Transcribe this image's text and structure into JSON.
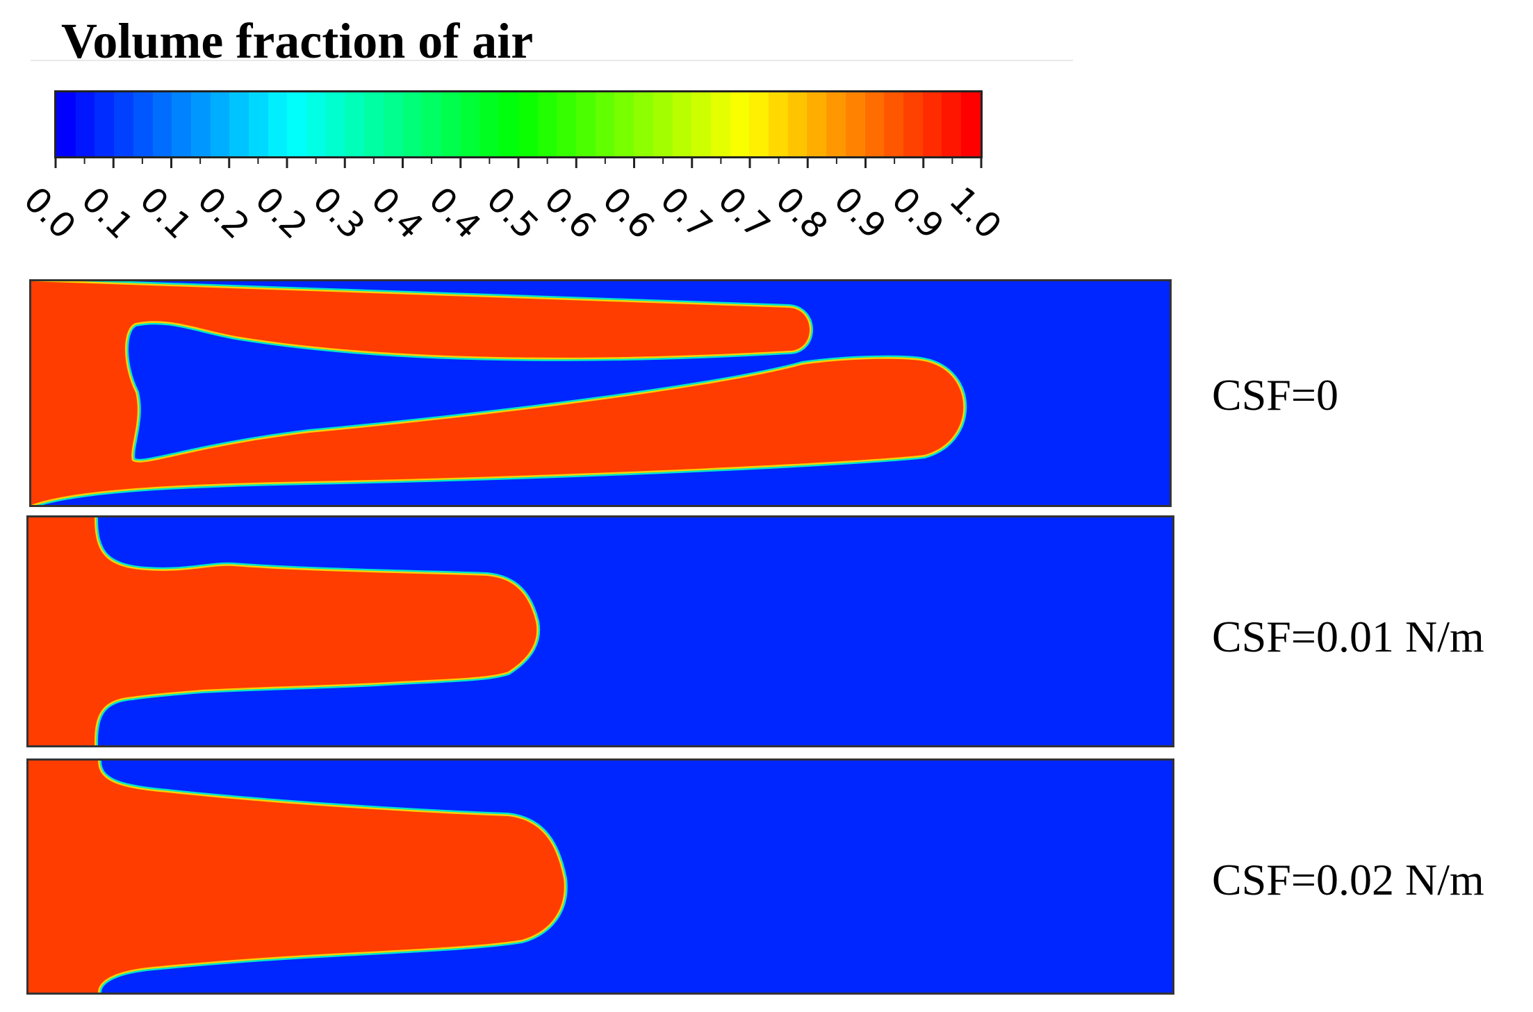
{
  "title": "Volume fraction of air",
  "colorbar": {
    "tick_labels": [
      "0.0",
      "0.1",
      "0.1",
      "0.2",
      "0.2",
      "0.3",
      "0.4",
      "0.4",
      "0.5",
      "0.6",
      "0.6",
      "0.7",
      "0.7",
      "0.8",
      "0.9",
      "0.9",
      "1.0"
    ],
    "range": [
      0,
      1
    ],
    "colormap": [
      "#0000ff",
      "#0080ff",
      "#00ffff",
      "#00ff80",
      "#00ff00",
      "#80ff00",
      "#ffff00",
      "#ff8000",
      "#ff0000"
    ]
  },
  "colors": {
    "air": "#0026ff",
    "liquid": "#ff3d00",
    "interface_outer": "#00e6c8",
    "interface_inner": "#ffd000"
  },
  "panels": [
    {
      "label": "CSF=0"
    },
    {
      "label": "CSF=0.01 N/m"
    },
    {
      "label": "CSF=0.02 N/m"
    }
  ]
}
